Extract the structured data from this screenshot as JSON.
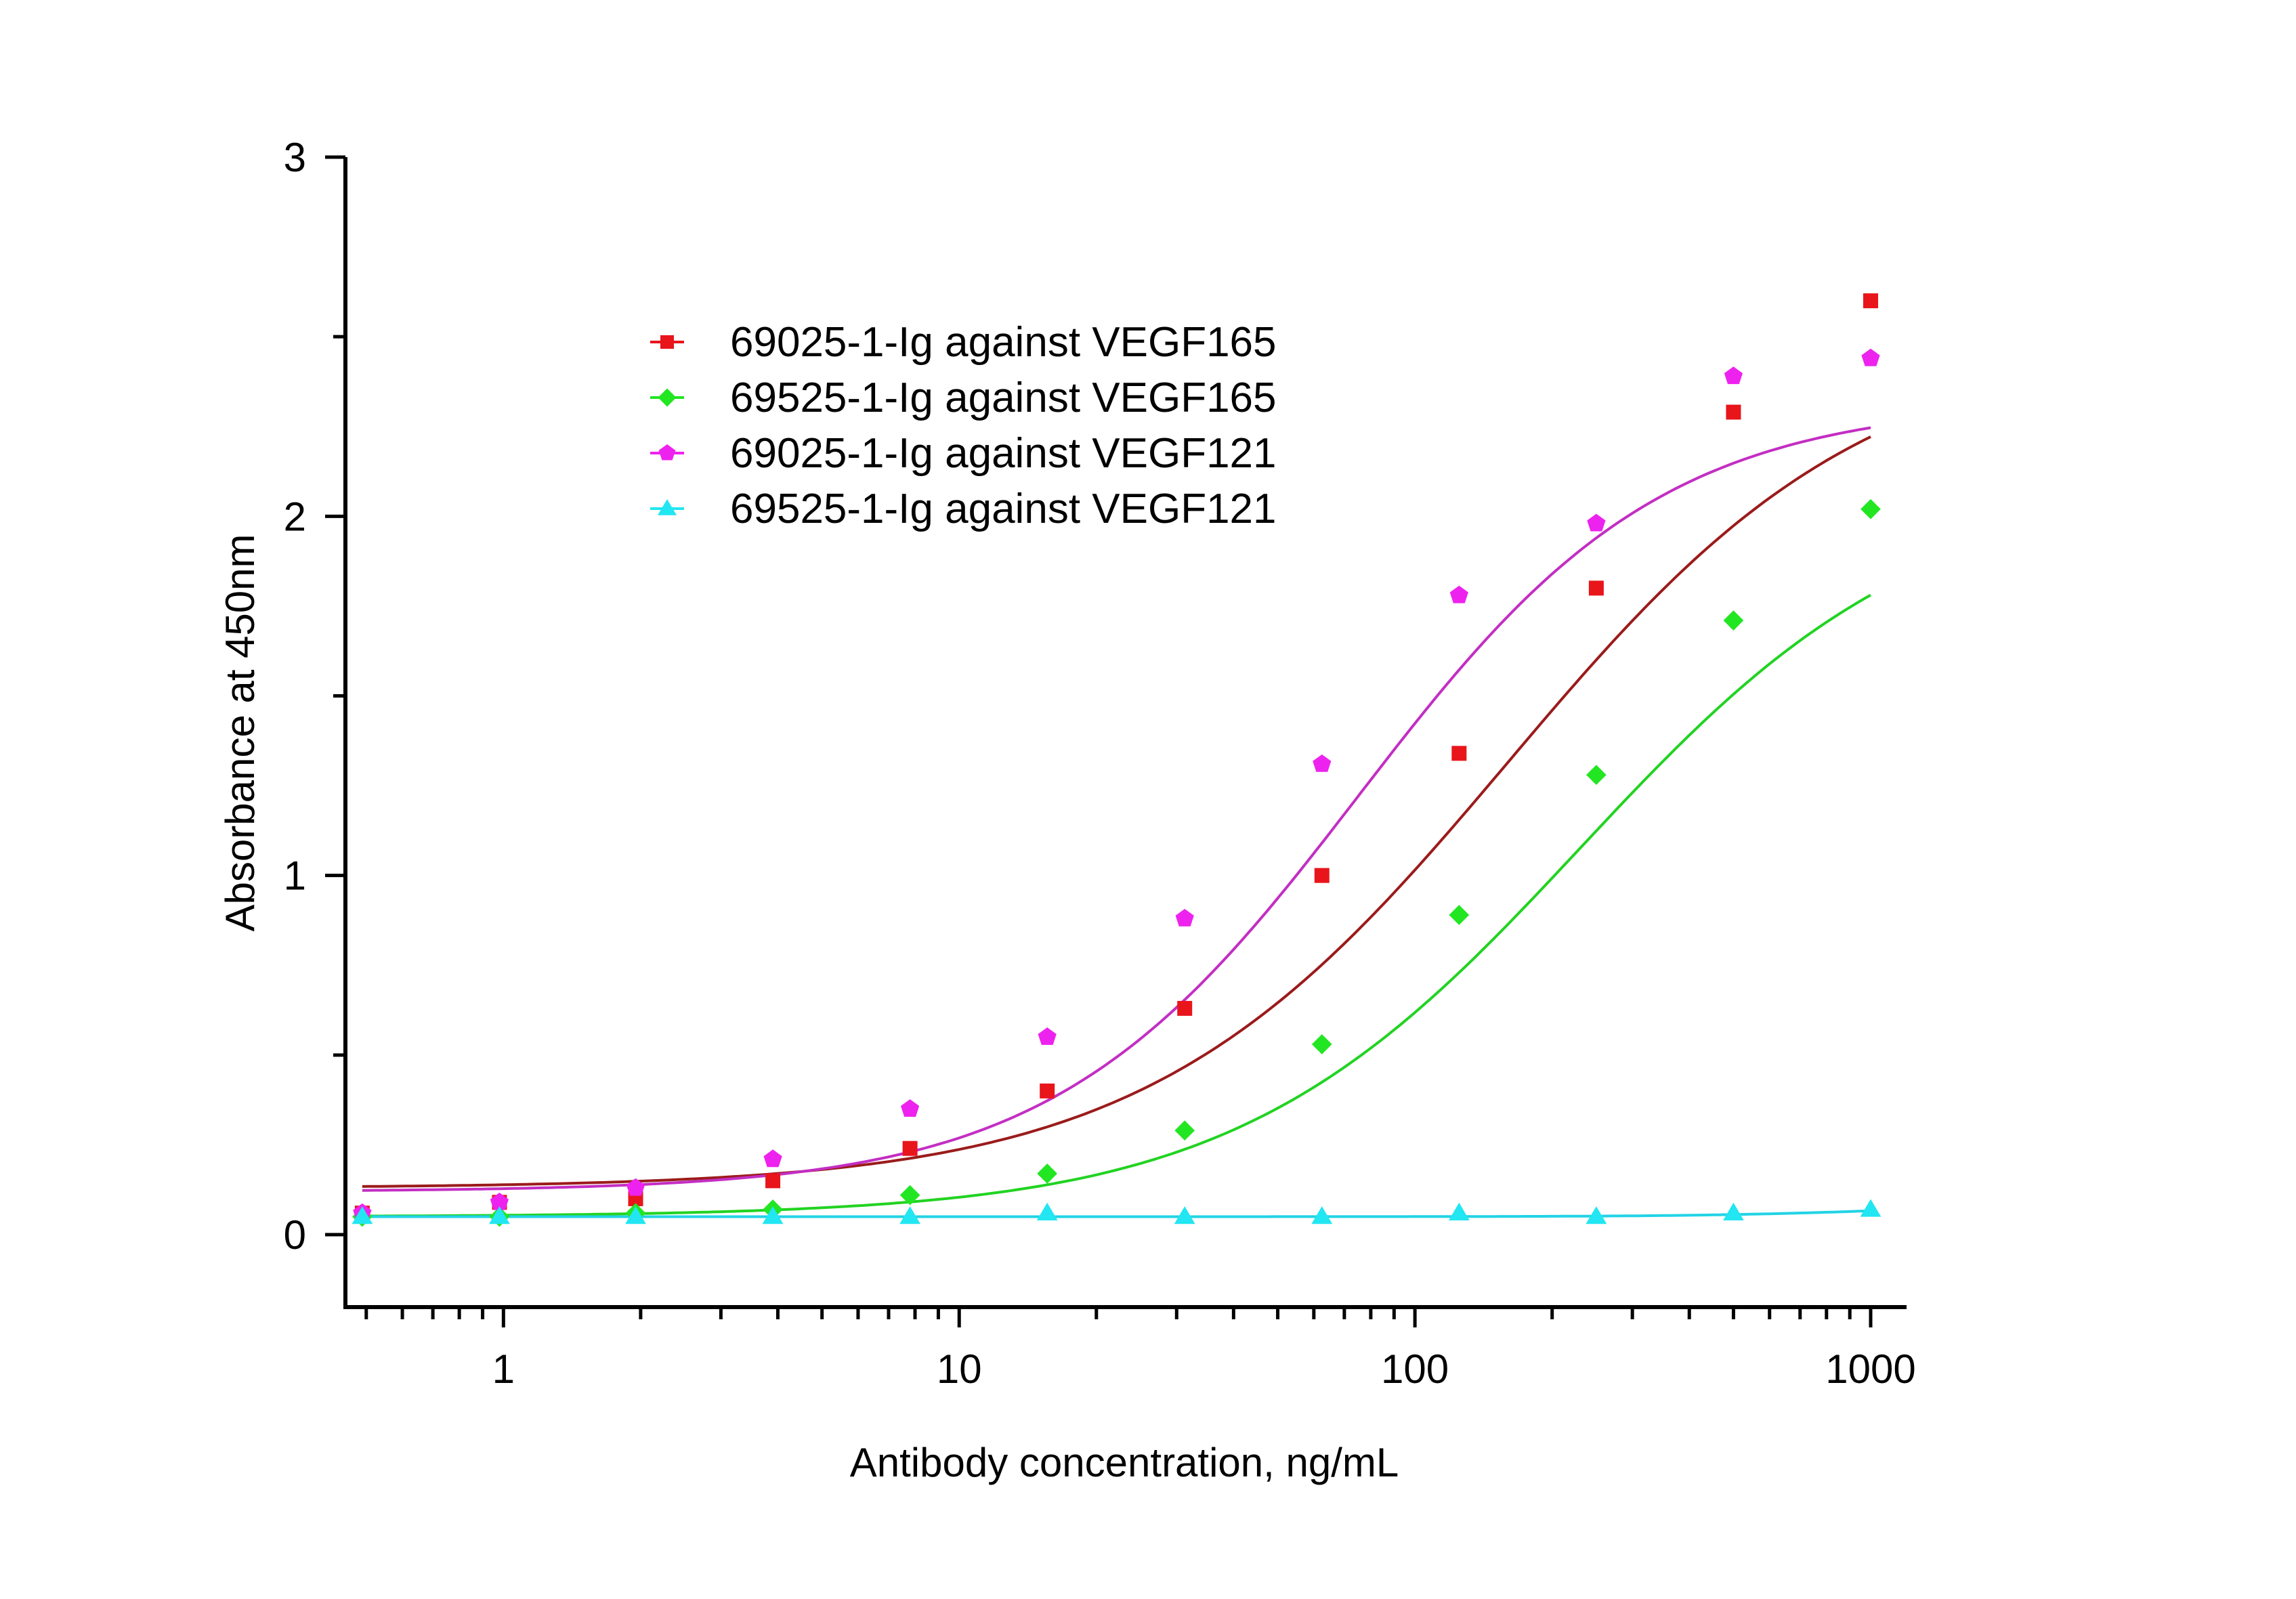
{
  "chart_data": {
    "type": "scatter",
    "title": "",
    "xlabel": "Antibody concentration, ng/mL",
    "ylabel": "Absorbance at 450nm",
    "x_scale": "log",
    "xlim": [
      0.45,
      1000
    ],
    "ylim": [
      -0.2,
      3.0
    ],
    "x_ticks": [
      1,
      10,
      100,
      1000
    ],
    "x_tick_labels": [
      "1",
      "10",
      "100",
      "1000"
    ],
    "y_ticks": [
      0,
      1,
      2,
      3
    ],
    "y_tick_labels": [
      "0",
      "1",
      "2",
      "3"
    ],
    "legend_position": "upper-left",
    "grid": false,
    "series": [
      {
        "name": "69025-1-Ig against VEGF165",
        "color": "#e8151b",
        "curve_color": "#9b1b1b",
        "marker": "square",
        "x": [
          0.49,
          0.98,
          1.95,
          3.9,
          7.8,
          15.6,
          31.25,
          62.5,
          125,
          250,
          500,
          1000
        ],
        "y": [
          0.06,
          0.09,
          0.1,
          0.15,
          0.24,
          0.4,
          0.63,
          1.0,
          1.34,
          1.8,
          2.29,
          2.6
        ],
        "fit": {
          "bottom": 0.13,
          "top": 2.5,
          "ec50": 160,
          "hill": 1.1
        }
      },
      {
        "name": "69525-1-Ig against VEGF165",
        "color": "#22e622",
        "curve_color": "#22d322",
        "marker": "diamond",
        "x": [
          0.49,
          0.98,
          1.95,
          3.9,
          7.8,
          15.6,
          31.25,
          62.5,
          125,
          250,
          500,
          1000
        ],
        "y": [
          0.05,
          0.05,
          0.06,
          0.07,
          0.11,
          0.17,
          0.29,
          0.53,
          0.89,
          1.28,
          1.71,
          2.02
        ],
        "fit": {
          "bottom": 0.05,
          "top": 2.1,
          "ec50": 230,
          "hill": 1.15
        }
      },
      {
        "name": "69025-1-Ig against VEGF121",
        "color": "#ee22ee",
        "curve_color": "#c32ec3",
        "marker": "pentagon",
        "x": [
          0.49,
          0.98,
          1.95,
          3.9,
          7.8,
          15.6,
          31.25,
          62.5,
          125,
          250,
          500,
          1000
        ],
        "y": [
          0.06,
          0.09,
          0.13,
          0.21,
          0.35,
          0.55,
          0.88,
          1.31,
          1.78,
          1.98,
          2.39,
          2.44
        ],
        "fit": {
          "bottom": 0.12,
          "top": 2.32,
          "ec50": 75,
          "hill": 1.3
        }
      },
      {
        "name": "69525-1-Ig against VEGF121",
        "color": "#22e6f2",
        "curve_color": "#22d3e6",
        "marker": "triangle",
        "x": [
          0.49,
          0.98,
          1.95,
          3.9,
          7.8,
          15.6,
          31.25,
          62.5,
          125,
          250,
          500,
          1000
        ],
        "y": [
          0.05,
          0.05,
          0.05,
          0.05,
          0.05,
          0.06,
          0.05,
          0.05,
          0.06,
          0.05,
          0.06,
          0.07
        ],
        "fit": {
          "bottom": 0.05,
          "top": 0.09,
          "ec50": 1200,
          "hill": 2.0
        }
      }
    ]
  }
}
